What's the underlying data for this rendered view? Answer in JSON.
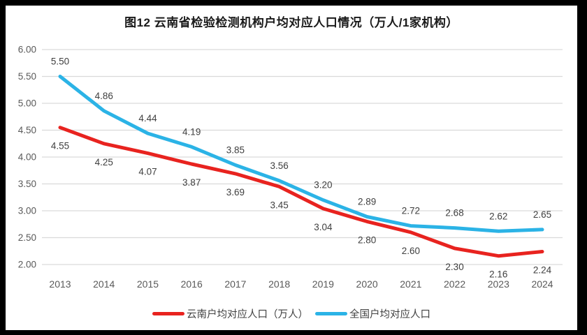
{
  "frame": {
    "background": "#000000",
    "panel_background": "#ffffff"
  },
  "chart_data": {
    "type": "line",
    "title": "图12 云南省检验检测机构户均对应人口情况（万人/1家机构）",
    "categories": [
      "2013",
      "2014",
      "2015",
      "2016",
      "2017",
      "2018",
      "2019",
      "2020",
      "2021",
      "2022",
      "2023",
      "2024"
    ],
    "series": [
      {
        "name": "云南户均对应人口（万人）",
        "color": "#e8231f",
        "values": [
          4.55,
          4.25,
          4.07,
          3.87,
          3.69,
          3.45,
          3.04,
          2.8,
          2.6,
          2.3,
          2.16,
          2.24
        ],
        "label_position": "below"
      },
      {
        "name": "全国户均对应人口",
        "color": "#2bb3e6",
        "values": [
          5.5,
          4.86,
          4.44,
          4.19,
          3.85,
          3.56,
          3.2,
          2.89,
          2.72,
          2.68,
          2.62,
          2.65
        ],
        "label_position": "above"
      }
    ],
    "y_axis": {
      "min": 2.0,
      "max": 6.0,
      "step": 0.5,
      "tick_labels": [
        "6.00",
        "5.50",
        "5.00",
        "4.50",
        "4.00",
        "3.50",
        "3.00",
        "2.50",
        "2.00"
      ]
    },
    "grid": true,
    "gridline_color": "#d9d9d9",
    "axis_label_color": "#595959",
    "data_label_color": "#3f3f3f",
    "legend_position": "bottom",
    "data_label_format": "0.00"
  }
}
